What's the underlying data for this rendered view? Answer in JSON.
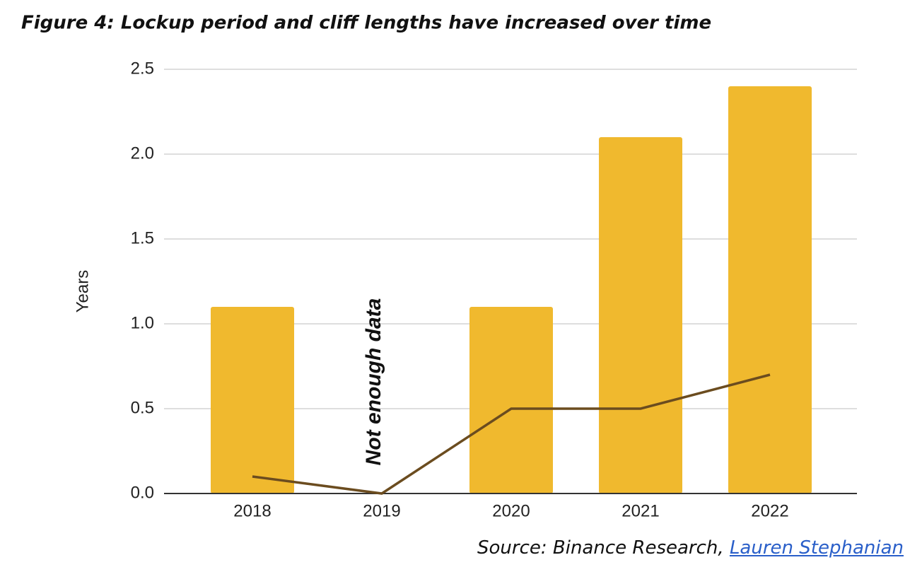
{
  "chart_data": {
    "type": "bar",
    "title": "Figure 4: Lockup period and cliff lengths have increased over time",
    "y_label": "Years",
    "annotation": "Not enough data",
    "categories": [
      "2018",
      "2019",
      "2020",
      "2021",
      "2022"
    ],
    "series": [
      {
        "type": "bar",
        "color": "#f0b92e",
        "values": [
          1.1,
          null,
          1.1,
          2.1,
          2.4
        ]
      },
      {
        "type": "line",
        "color": "#6b4c1f",
        "values": [
          0.1,
          0,
          0.5,
          0.5,
          0.7
        ]
      }
    ],
    "ylim": [
      0,
      2.5
    ],
    "yticks": [
      {
        "value": 0,
        "label": "0.0"
      },
      0.5,
      {
        "value": 1,
        "label": "1.0"
      },
      1.5,
      {
        "value": 2,
        "label": "2.0"
      },
      2.5
    ],
    "grid": true,
    "source": "Source: Binance Research,",
    "source_link": "Lauren Stephanian"
  }
}
